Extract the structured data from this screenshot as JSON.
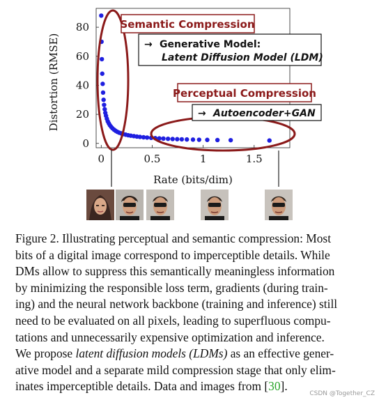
{
  "chart_data": {
    "type": "scatter",
    "xlabel": "Rate (bits/dim)",
    "ylabel": "Distortion (RMSE)",
    "xticks": [
      "0",
      "0.5",
      "1",
      "1.5"
    ],
    "xtick_values": [
      0,
      0.5,
      1,
      1.5
    ],
    "yticks": [
      "0",
      "20",
      "40",
      "60",
      "80"
    ],
    "ytick_values": [
      0,
      20,
      40,
      60,
      80
    ],
    "xlim": [
      -0.05,
      1.85
    ],
    "ylim": [
      -3,
      93
    ],
    "grid": false,
    "series": [
      {
        "color": "#1f1fe0",
        "x": [
          0.0,
          0.003,
          0.006,
          0.01,
          0.014,
          0.018,
          0.023,
          0.028,
          0.034,
          0.04,
          0.047,
          0.055,
          0.064,
          0.074,
          0.085,
          0.097,
          0.11,
          0.125,
          0.14,
          0.157,
          0.175,
          0.195,
          0.216,
          0.24,
          0.265,
          0.29,
          0.32,
          0.35,
          0.38,
          0.415,
          0.45,
          0.49,
          0.53,
          0.57,
          0.61,
          0.655,
          0.7,
          0.745,
          0.79,
          0.84,
          0.9,
          0.96,
          1.04,
          1.14,
          1.27,
          1.65
        ],
        "y": [
          88,
          70,
          58,
          48,
          41,
          35,
          30,
          26.5,
          23.5,
          21,
          19,
          17,
          15.2,
          13.8,
          12.5,
          11.4,
          10.4,
          9.5,
          8.7,
          8.0,
          7.4,
          6.9,
          6.4,
          6.0,
          5.6,
          5.3,
          5.0,
          4.7,
          4.45,
          4.2,
          4.0,
          3.8,
          3.6,
          3.45,
          3.3,
          3.15,
          3.0,
          2.9,
          2.8,
          2.7,
          2.6,
          2.5,
          2.4,
          2.3,
          2.2,
          2.0
        ]
      }
    ],
    "annotations": {
      "semantic_title": "Semantic Compression",
      "semantic_arrow": "→",
      "semantic_line1": "Generative Model:",
      "semantic_line2": "Latent Diffusion Model (LDM)",
      "perceptual_title": "Perceptual Compression",
      "perceptual_arrow": "→",
      "perceptual_line1": "Autoencoder+GAN"
    },
    "colors": {
      "ellipse": "#8b1a1a",
      "points": "#1f1fe0"
    }
  },
  "caption": {
    "lines": [
      "Figure 2.  Illustrating perceptual and semantic compression: Most",
      "bits of a digital image correspond to imperceptible details. While",
      "DMs allow to suppress this semantically meaningless information",
      "by minimizing the responsible loss term, gradients (during train-",
      "ing) and the neural network backbone (training and inference) still",
      "need to be evaluated on all pixels, leading to superfluous compu-",
      "tations and unnecessarily expensive optimization and inference."
    ],
    "line8_pre": "We propose ",
    "line8_em": "latent diffusion models (LDMs)",
    "line8_post": " as an effective gener-",
    "line9": "ative model and a separate mild compression stage that only elim-",
    "line10_pre": "inates imperceptible details. Data and images from [",
    "line10_ref": "30",
    "line10_post": "]."
  },
  "watermark": "CSDN @Together_CZ"
}
